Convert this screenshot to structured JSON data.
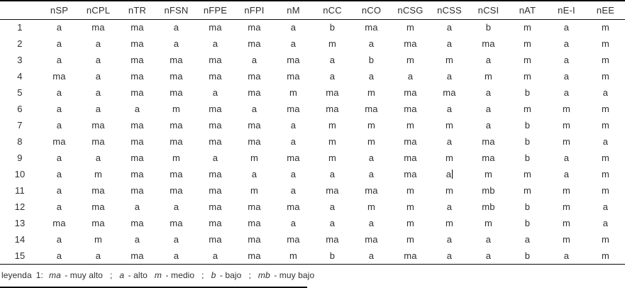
{
  "document": {
    "colors": {
      "text": "#2f2f2f",
      "line": "#0a0a0a"
    },
    "table": {
      "corner_label": "",
      "columns": [
        "nSP",
        "nCPL",
        "nTR",
        "nFSN",
        "nFPE",
        "nFPI",
        "nM",
        "nCC",
        "nCO",
        "nCSG",
        "nCSS",
        "nCSI",
        "nAT",
        "nE-I",
        "nEE"
      ],
      "rows": [
        {
          "id": "1",
          "values": [
            "a",
            "ma",
            "ma",
            "a",
            "ma",
            "ma",
            "a",
            "b",
            "ma",
            "m",
            "a",
            "b",
            "m",
            "a",
            "m"
          ]
        },
        {
          "id": "2",
          "values": [
            "a",
            "a",
            "ma",
            "a",
            "a",
            "ma",
            "a",
            "m",
            "a",
            "ma",
            "a",
            "ma",
            "m",
            "a",
            "m"
          ]
        },
        {
          "id": "3",
          "values": [
            "a",
            "a",
            "ma",
            "ma",
            "ma",
            "a",
            "ma",
            "a",
            "b",
            "m",
            "m",
            "a",
            "m",
            "a",
            "m"
          ]
        },
        {
          "id": "4",
          "values": [
            "ma",
            "a",
            "ma",
            "ma",
            "ma",
            "ma",
            "ma",
            "a",
            "a",
            "a",
            "a",
            "m",
            "m",
            "a",
            "m"
          ]
        },
        {
          "id": "5",
          "values": [
            "a",
            "a",
            "ma",
            "ma",
            "a",
            "ma",
            "m",
            "ma",
            "m",
            "ma",
            "ma",
            "a",
            "b",
            "a",
            "a"
          ]
        },
        {
          "id": "6",
          "values": [
            "a",
            "a",
            "a",
            "m",
            "ma",
            "a",
            "ma",
            "ma",
            "ma",
            "ma",
            "a",
            "a",
            "m",
            "m",
            "m"
          ]
        },
        {
          "id": "7",
          "values": [
            "a",
            "ma",
            "ma",
            "ma",
            "ma",
            "ma",
            "a",
            "m",
            "m",
            "m",
            "m",
            "a",
            "b",
            "m",
            "m"
          ]
        },
        {
          "id": "8",
          "values": [
            "ma",
            "ma",
            "ma",
            "ma",
            "ma",
            "ma",
            "a",
            "m",
            "m",
            "ma",
            "a",
            "ma",
            "b",
            "m",
            "a"
          ]
        },
        {
          "id": "9",
          "values": [
            "a",
            "a",
            "ma",
            "m",
            "a",
            "m",
            "ma",
            "m",
            "a",
            "ma",
            "m",
            "ma",
            "b",
            "a",
            "m"
          ]
        },
        {
          "id": "10",
          "values": [
            "a",
            "m",
            "ma",
            "ma",
            "ma",
            "a",
            "a",
            "a",
            "a",
            "ma",
            "a",
            "m",
            "m",
            "a",
            "m"
          ]
        },
        {
          "id": "11",
          "values": [
            "a",
            "ma",
            "ma",
            "ma",
            "ma",
            "m",
            "a",
            "ma",
            "ma",
            "m",
            "m",
            "mb",
            "m",
            "m",
            "m"
          ]
        },
        {
          "id": "12",
          "values": [
            "a",
            "ma",
            "a",
            "a",
            "ma",
            "ma",
            "ma",
            "a",
            "m",
            "m",
            "a",
            "mb",
            "b",
            "m",
            "a"
          ]
        },
        {
          "id": "13",
          "values": [
            "ma",
            "ma",
            "ma",
            "ma",
            "ma",
            "ma",
            "a",
            "a",
            "a",
            "m",
            "m",
            "m",
            "b",
            "m",
            "a"
          ]
        },
        {
          "id": "14",
          "values": [
            "a",
            "m",
            "a",
            "a",
            "ma",
            "ma",
            "ma",
            "ma",
            "ma",
            "m",
            "a",
            "a",
            "a",
            "m",
            "m"
          ]
        },
        {
          "id": "15",
          "values": [
            "a",
            "a",
            "ma",
            "a",
            "a",
            "ma",
            "m",
            "b",
            "a",
            "ma",
            "a",
            "a",
            "b",
            "a",
            "m"
          ]
        }
      ],
      "caret": {
        "row_id": "10",
        "column": "nCSS"
      }
    },
    "legend": {
      "label": "leyenda",
      "numeral": "1:",
      "items": [
        {
          "abbr": "ma",
          "meaning": "muy alto",
          "sep": ";"
        },
        {
          "abbr": "a",
          "meaning": "alto",
          "sep": ""
        },
        {
          "abbr": "m",
          "meaning": "medio",
          "sep": ";"
        },
        {
          "abbr": "b",
          "meaning": "bajo",
          "sep": ";"
        },
        {
          "abbr": "mb",
          "meaning": "muy bajo",
          "sep": ""
        }
      ]
    }
  }
}
